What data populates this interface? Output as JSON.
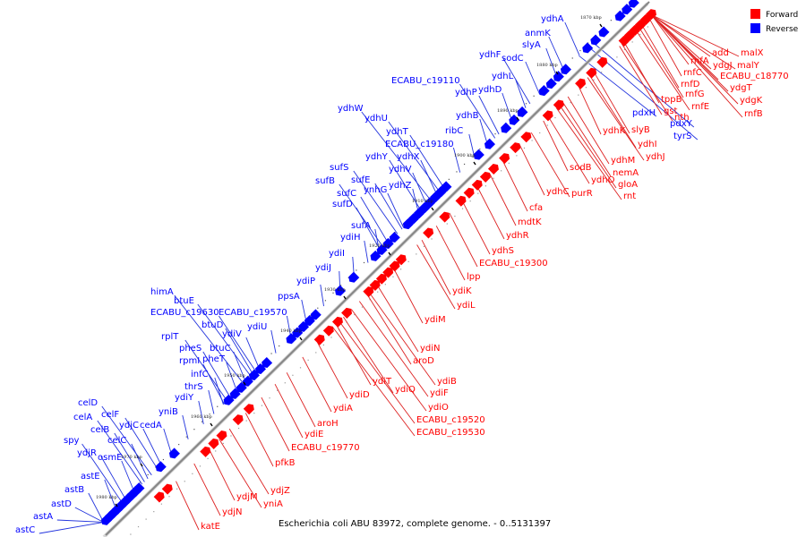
{
  "caption": "Escherichia coli ABU 83972, complete genome. - 0..5131397",
  "legend": [
    {
      "label": "Forward",
      "color": "#ff0000"
    },
    {
      "label": "Reverse",
      "color": "#0000ff"
    }
  ],
  "colors": {
    "forward": "#ff0000",
    "reverse": "#0000ff",
    "forward_line": "#dd2222",
    "reverse_line": "#2233dd",
    "axis": "#888888"
  },
  "ticks": [
    "1870 kbp",
    "1880 kbp",
    "1890 kbp",
    "1900 kbp",
    "1910 kbp",
    "1920 kbp",
    "1930 kbp",
    "1940 kbp",
    "1950 kbp",
    "1960 kbp",
    "1970 kbp",
    "1980 kbp"
  ],
  "reverse_genes": [
    "ydhA",
    "anmK",
    "slyA",
    "sodC",
    "ydhF",
    "ydhL",
    "ECABU_c19110",
    "ydhD",
    "ydhP",
    "ydhB",
    "ribC",
    "ydhW",
    "ydhU",
    "ydhT",
    "ECABU_c19180",
    "ydhY",
    "ydhX",
    "ydhV",
    "sufS",
    "sufE",
    "sufB",
    "ydhZ",
    "sufC",
    "ynhG",
    "sufD",
    "sufA",
    "ydiH",
    "ydiI",
    "ydiJ",
    "ydiP",
    "ppsA",
    "himA",
    "btuE",
    "ECABU_c19630",
    "ECABU_c19570",
    "btuD",
    "ydiU",
    "rplT",
    "ydiV",
    "pheS",
    "btuC",
    "rpmI",
    "pheT",
    "infC",
    "thrS",
    "ydiY",
    "yniB",
    "celD",
    "celF",
    "celA",
    "ydjC",
    "cedA",
    "celB",
    "celC",
    "spy",
    "ydjR",
    "osmE",
    "astE",
    "astB",
    "astD",
    "astA",
    "astC",
    "pdxH",
    "pdxY",
    "tyrS"
  ],
  "forward_genes": [
    "add",
    "malX",
    "ydgJ",
    "malY",
    "rnfA",
    "ECABU_c18770",
    "rnfC",
    "ydgT",
    "rnfD",
    "tppB",
    "rnfG",
    "ydgK",
    "gst",
    "rnfE",
    "rnfB",
    "nth",
    "slyB",
    "ydhK",
    "ydhI",
    "ydhJ",
    "ydhM",
    "sodB",
    "nemA",
    "ydhO",
    "gloA",
    "purR",
    "ydhC",
    "rnt",
    "cfa",
    "mdtK",
    "ydhR",
    "ydhS",
    "ECABU_c19300",
    "lpp",
    "ydiK",
    "ydiL",
    "ydiM",
    "ydiN",
    "aroD",
    "ydiB",
    "ydiT",
    "ydiQ",
    "ydiF",
    "ydiD",
    "ydiO",
    "ydiA",
    "ECABU_c19520",
    "aroH",
    "ECABU_c19530",
    "ydiE",
    "ECABU_c19770",
    "pfkB",
    "ydjZ",
    "ydjM",
    "yniA",
    "ydjN",
    "katE"
  ]
}
